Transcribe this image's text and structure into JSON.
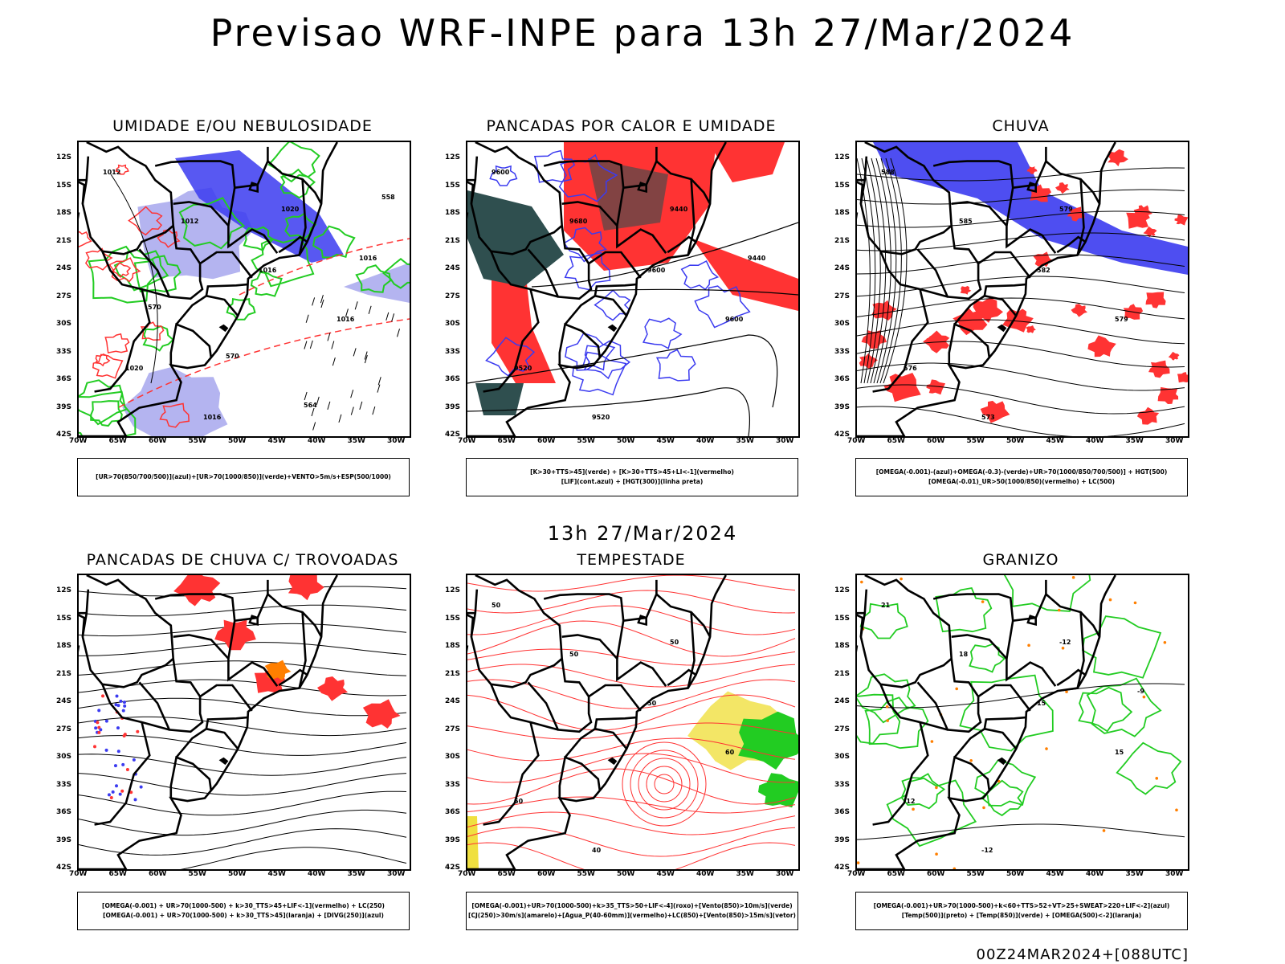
{
  "header": {
    "title": "Previsao WRF-INPE  para 13h 27/Mar/2024"
  },
  "middle": {
    "title": "13h 27/Mar/2024"
  },
  "footer": {
    "run": "00Z24MAR2024+[088UTC]"
  },
  "axes": {
    "y_ticks": [
      "12S",
      "15S",
      "18S",
      "21S",
      "24S",
      "27S",
      "30S",
      "33S",
      "36S",
      "39S",
      "42S"
    ],
    "x_ticks": [
      "70W",
      "65W",
      "60W",
      "55W",
      "50W",
      "45W",
      "40W",
      "35W",
      "30W"
    ]
  },
  "colors": {
    "blue": "#3b3bf0",
    "light_blue": "#b4b4f0",
    "green": "#22cc22",
    "red": "#ff3333",
    "orange": "#ff7f00",
    "yellow": "#f0e040",
    "dark_green": "#2f4f4f",
    "black": "#000000"
  },
  "panels": [
    {
      "id": "umidade",
      "title": "UMIDADE E/OU NEBULOSIDADE",
      "legend": [
        "[UR>70(850/700/500)](azul)+[UR>70(1000/850)](verde)+VENTO>5m/s+ESP(500/1000)"
      ],
      "contour_labels": [
        "1012",
        "1012",
        "1016",
        "1016",
        "1020",
        "1016",
        "1020",
        "1016",
        "570",
        "570",
        "564",
        "558"
      ]
    },
    {
      "id": "pancadas_calor",
      "title": "PANCADAS POR CALOR E UMIDADE",
      "legend": [
        "[K>30+TTS>45](verde) + [K>30+TTS>45+LI<-1](vermelho)",
        "[LIF](cont.azul) + [HGT(300)](linha preta)"
      ],
      "contour_labels": [
        "9600",
        "9680",
        "9600",
        "9600",
        "9520",
        "9520",
        "9440",
        "9440"
      ]
    },
    {
      "id": "chuva",
      "title": "CHUVA",
      "legend": [
        "[OMEGA(-0.001)-(azul)+OMEGA(-0.3)-(verde)+UR>70(1000/850/700/500)] + HGT(500)",
        "[OMEGA(-0.01)_UR>50(1000/850)(vermelho) + LC(500)"
      ],
      "contour_labels": [
        "588",
        "585",
        "582",
        "579",
        "576",
        "573",
        "579"
      ]
    },
    {
      "id": "pancadas_trovoadas",
      "title": "PANCADAS DE CHUVA C/ TROVOADAS",
      "legend": [
        "[OMEGA(-0.001) + UR>70(1000-500) + k>30_TTS>45+LIF<-1](vermelho) + LC(250)",
        "[OMEGA(-0.001) + UR>70(1000-500) + k>30_TTS>45](laranja) + [DIVG(250)](azul)"
      ],
      "contour_labels": []
    },
    {
      "id": "tempestade",
      "title": "TEMPESTADE",
      "legend": [
        "[OMEGA(-0.001)+UR>70(1000-500)+k>35_TTS>50+LIF<-4](roxo)+[Vento(850)>10m/s](verde)",
        "[CJ(250)>30m/s](amarelo)+[Agua_P(40-60mm)](vermelho)+LC(850)+[Vento(850)>15m/s](vetor)"
      ],
      "contour_labels": [
        "50",
        "50",
        "50",
        "60",
        "50",
        "40",
        "50"
      ]
    },
    {
      "id": "granizo",
      "title": "GRANIZO",
      "legend": [
        "[OMEGA(-0.001)+UR>70(1000-500)+k<60+TTS>52+VT>25+SWEAT>220+LIF<-2](azul)",
        "[Temp(500)](preto) + [Temp(850)](verde) + [OMEGA(500)<-2](laranja)"
      ],
      "contour_labels": [
        "21",
        "18",
        "15",
        "15",
        "-12",
        "-12",
        "-12",
        "-9"
      ]
    }
  ]
}
